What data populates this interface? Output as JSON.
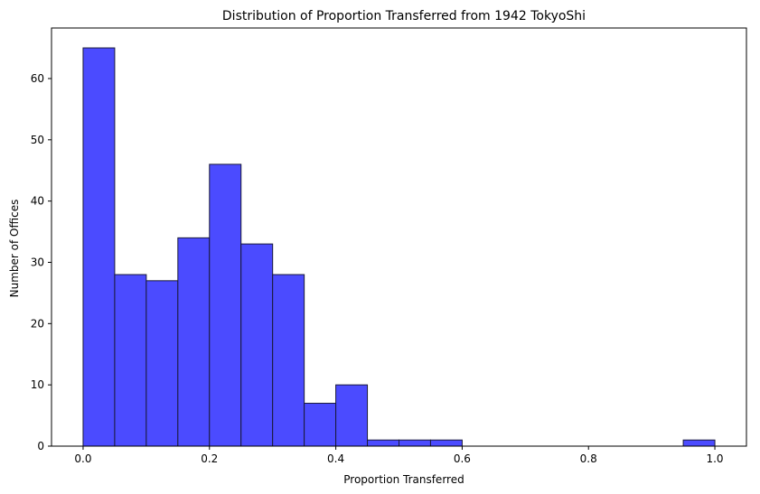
{
  "chart_data": {
    "type": "bar",
    "title": "Distribution of Proportion Transferred from 1942 TokyoShi",
    "xlabel": "Proportion Transferred",
    "ylabel": "Number of Offices",
    "bin_width": 0.05,
    "bin_starts": [
      0.0,
      0.05,
      0.1,
      0.15,
      0.2,
      0.25,
      0.3,
      0.35,
      0.4,
      0.45,
      0.5,
      0.55,
      0.6,
      0.65,
      0.7,
      0.75,
      0.8,
      0.85,
      0.9,
      0.95
    ],
    "values": [
      65,
      28,
      27,
      34,
      46,
      33,
      28,
      7,
      10,
      1,
      1,
      1,
      0,
      0,
      0,
      0,
      0,
      0,
      0,
      1
    ],
    "xlim": [
      -0.05,
      1.05
    ],
    "ylim": [
      0,
      68.25
    ],
    "xticks": [
      0.0,
      0.2,
      0.4,
      0.6,
      0.8,
      1.0
    ],
    "xtick_labels": [
      "0.0",
      "0.2",
      "0.4",
      "0.6",
      "0.8",
      "1.0"
    ],
    "yticks": [
      0,
      10,
      20,
      30,
      40,
      50,
      60
    ],
    "ytick_labels": [
      "0",
      "10",
      "20",
      "30",
      "40",
      "50",
      "60"
    ],
    "bar_color": "#4b4bff",
    "edge_color": "#1a1a3a",
    "grid": false,
    "legend": "none"
  }
}
